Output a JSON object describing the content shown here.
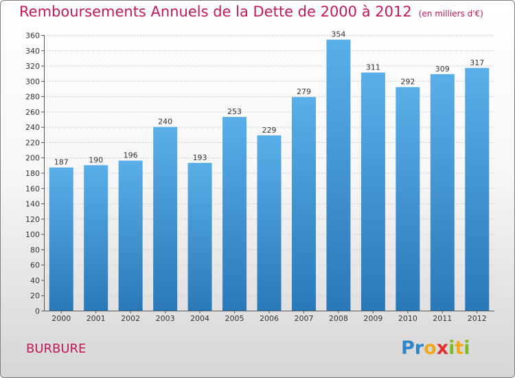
{
  "title": "Remboursements Annuels de la Dette de 2000 à 2012",
  "unit": "(en milliers d'€)",
  "city": "BURBURE",
  "logo": {
    "text": "Proxiti",
    "letters": [
      {
        "char": "P",
        "color": "#2e86c8"
      },
      {
        "char": "r",
        "color": "#2e86c8"
      },
      {
        "char": "o",
        "color": "#f2a81d"
      },
      {
        "char": "x",
        "color": "#e0302e"
      },
      {
        "char": "i",
        "color": "#7bbb2a"
      },
      {
        "char": "t",
        "color": "#f2a81d"
      },
      {
        "char": "i",
        "color": "#7bbb2a"
      }
    ]
  },
  "colors": {
    "title": "#c1185a",
    "bar_top": "#5aafe8",
    "bar_bottom": "#2a78b8",
    "grid": "#cccccc",
    "axis": "#555555"
  },
  "chart_data": {
    "type": "bar",
    "title": "Remboursements Annuels de la Dette de 2000 à 2012",
    "categories": [
      "2000",
      "2001",
      "2002",
      "2003",
      "2004",
      "2005",
      "2006",
      "2007",
      "2008",
      "2009",
      "2010",
      "2011",
      "2012"
    ],
    "values": [
      187,
      190,
      196,
      240,
      193,
      253,
      229,
      279,
      354,
      311,
      292,
      309,
      317
    ],
    "xlabel": "",
    "ylabel": "",
    "ylim": [
      0,
      360
    ],
    "yticks": [
      0,
      20,
      40,
      60,
      80,
      100,
      120,
      140,
      160,
      180,
      200,
      220,
      240,
      260,
      280,
      300,
      320,
      340,
      360
    ],
    "grid": true,
    "data_labels": true
  }
}
